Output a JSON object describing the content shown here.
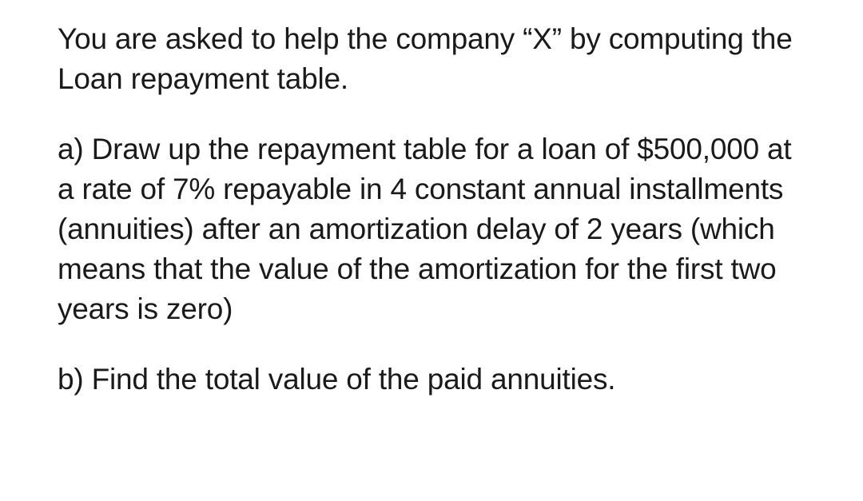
{
  "text_color": "#1a1a1a",
  "background_color": "#ffffff",
  "font_size_pt": 28,
  "font_family": "sans-serif",
  "line_height": 1.35,
  "paragraphs": [
    {
      "text": "You are asked to help the company “X” by computing the Loan repayment table."
    },
    {
      "text": "a) Draw up the repayment table for a loan of $500,000 at a rate of 7% repayable in 4 constant annual installments (annuities) after an amortization delay of 2 years (which means that the value of the amortization for the first two years is zero)"
    },
    {
      "text": "b) Find the total value of the paid annuities."
    }
  ]
}
